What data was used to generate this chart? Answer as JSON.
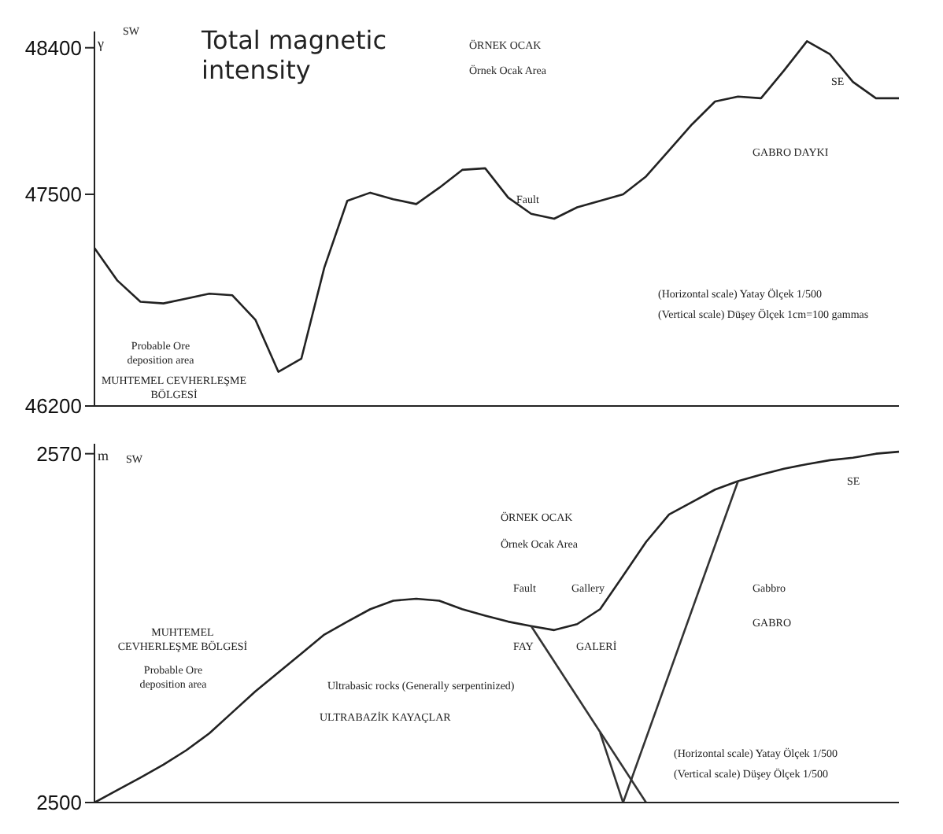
{
  "chart_data": [
    {
      "type": "line",
      "title": "Total magnetic intensity",
      "ylabel": "γ",
      "categories": [
        null,
        null,
        null,
        null,
        null,
        null,
        null,
        null,
        null,
        null,
        null,
        null,
        null,
        null,
        null,
        null,
        null,
        null,
        null,
        null,
        null,
        null,
        null,
        null,
        null,
        null,
        null,
        null,
        null,
        null,
        null,
        null,
        null,
        null,
        null,
        null
      ],
      "series": [
        {
          "color": "#222222",
          "values": [
            47170,
            46970,
            46840,
            46830,
            46860,
            46890,
            46880,
            46730,
            46410,
            46490,
            47050,
            47460,
            47510,
            47470,
            47440,
            47540,
            47650,
            47660,
            47480,
            47380,
            47350,
            47420,
            47460,
            47500,
            47610,
            47770,
            47930,
            48070,
            48100,
            48090,
            48260,
            48440,
            48360,
            48190,
            48090,
            48090
          ]
        }
      ],
      "ylim": [
        46200,
        48500
      ],
      "yticks": [
        46200,
        47500,
        48400
      ],
      "grid": false,
      "legend": false,
      "marker": "none",
      "annotations": [
        "SW",
        "SE",
        "ÖRNEK OCAK",
        "Örnek Ocak Area",
        "Fault",
        "GABRO DAYKI",
        "(Horizontal scale) Yatay Ölçek 1/500",
        "(Vertical scale) Düşey Ölçek 1cm=100 gammas",
        "Probable Ore deposition area",
        "MUHTEMEL CEVHERLEŞME BÖLGESİ"
      ]
    },
    {
      "type": "line",
      "ylabel": "m",
      "categories": [
        null,
        null,
        null,
        null,
        null,
        null,
        null,
        null,
        null,
        null,
        null,
        null,
        null,
        null,
        null,
        null,
        null,
        null,
        null,
        null,
        null,
        null,
        null,
        null,
        null,
        null,
        null,
        null,
        null,
        null,
        null,
        null,
        null,
        null,
        null,
        null
      ],
      "series": [
        {
          "color": "#222222",
          "values": [
            2500,
            2502.5,
            2505,
            2507.6,
            2510.5,
            2513.9,
            2518.1,
            2522.3,
            2526.1,
            2529.9,
            2533.7,
            2536.3,
            2538.8,
            2540.5,
            2540.9,
            2540.5,
            2538.8,
            2537.5,
            2536.3,
            2535.4,
            2534.6,
            2535.8,
            2538.8,
            2545.5,
            2552.3,
            2557.8,
            2560.3,
            2562.8,
            2564.5,
            2565.8,
            2567,
            2567.9,
            2568.7,
            2569.2,
            2570,
            2570.4
          ]
        },
        {
          "color": "#333333",
          "values": [
            null,
            null,
            null,
            null,
            null,
            null,
            null,
            null,
            null,
            null,
            null,
            null,
            null,
            null,
            null,
            null,
            null,
            null,
            null,
            2535.4,
            null,
            null,
            null,
            null,
            2500,
            null,
            null,
            null,
            null,
            null,
            null,
            null,
            null,
            null,
            null,
            null
          ]
        },
        {
          "color": "#333333",
          "values": [
            null,
            null,
            null,
            null,
            null,
            null,
            null,
            null,
            null,
            null,
            null,
            null,
            null,
            null,
            null,
            null,
            null,
            null,
            null,
            null,
            null,
            null,
            2514,
            2500,
            null,
            null,
            null,
            null,
            2564.5,
            null,
            null,
            null,
            null,
            null,
            null,
            null
          ]
        }
      ],
      "ylim": [
        2500,
        2572
      ],
      "yticks": [
        2500,
        2570
      ],
      "grid": false,
      "legend": false,
      "marker": "none",
      "annotations": [
        "SW",
        "SE",
        "MUHTEMEL CEVHERLEŞME BÖLGESİ",
        "Probable Ore deposition area",
        "ÖRNEK OCAK",
        "Örnek Ocak Area",
        "Fault",
        "Gallery",
        "FAY",
        "GALERİ",
        "Gabbro",
        "GABRO",
        "Ultrabasic rocks (Generally serpentinized)",
        "ULTRABAZİK KAYAÇLAR",
        "(Horizontal scale) Yatay Ölçek 1/500",
        "(Vertical scale) Düşey Ölçek 1/500"
      ]
    }
  ]
}
